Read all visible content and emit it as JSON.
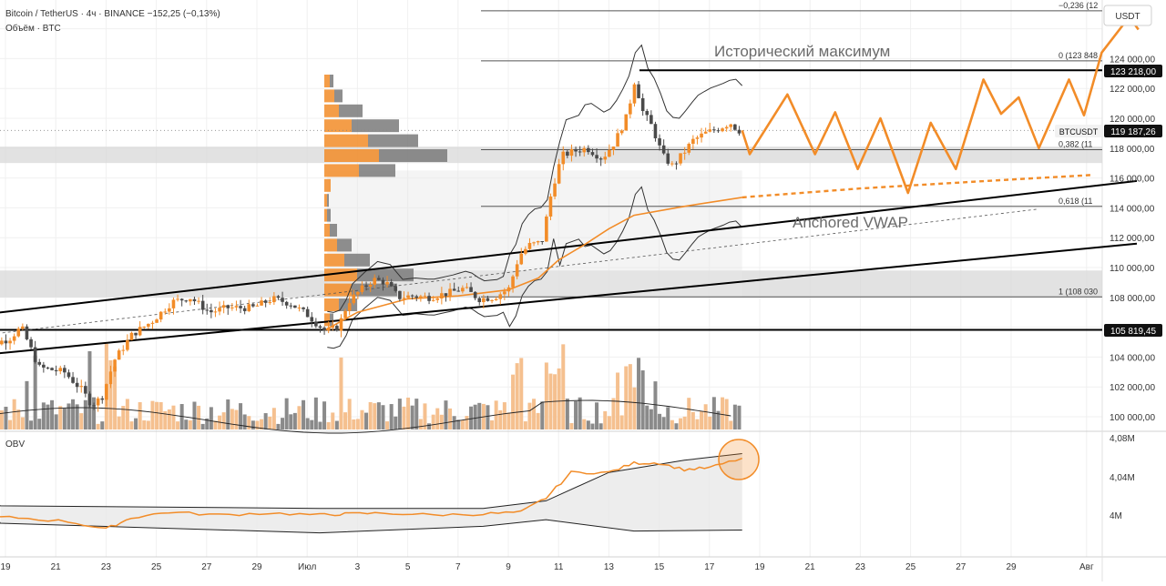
{
  "header": {
    "symbol_line": "Bitcoin / TetherUS · 4ч · BINANCE  −152,25 (−0,13%)",
    "volume_line": "Объём · BTC",
    "currency_button": "USDT"
  },
  "colors": {
    "accent": "#f28c28",
    "up_candle": "#f28c28",
    "down_candle": "#4a4a4a",
    "volume_up": "#f5c08f",
    "volume_down": "#8a8a8a",
    "zone": "#d8d8d8",
    "line": "#000000"
  },
  "annotations": {
    "ath_label": "Исторический максимум",
    "vwap_label": "Anchored VWAP",
    "symbol_tag": "BTCUSDT"
  },
  "panes": {
    "obv_label": "OBV",
    "obv_ticks": [
      "4,08M",
      "4,04M",
      "4M"
    ]
  },
  "chart_data": {
    "type": "candlestick",
    "symbol": "BTCUSDT",
    "timeframe": "4h",
    "exchange": "BINANCE",
    "change": "−152,25 (−0,13%)",
    "last_price": "119 187,26",
    "y_axis": {
      "unit": "USDT",
      "range": [
        98800,
        127500
      ],
      "ticks": [
        "100 000,00",
        "102 000,00",
        "104 000,00",
        "108 000,00",
        "110 000,00",
        "112 000,00",
        "114 000,00",
        "116 000,00",
        "118 000,00",
        "120 000,00",
        "122 000,00",
        "124 000,00"
      ]
    },
    "x_axis": {
      "ticks": [
        {
          "day": 19,
          "label": "19"
        },
        {
          "day": 21,
          "label": "21"
        },
        {
          "day": 23,
          "label": "23"
        },
        {
          "day": 25,
          "label": "25"
        },
        {
          "day": 27,
          "label": "27"
        },
        {
          "day": 29,
          "label": "29"
        },
        {
          "day": 31,
          "label": "Июл"
        },
        {
          "day": 33,
          "label": "3"
        },
        {
          "day": 35,
          "label": "5"
        },
        {
          "day": 37,
          "label": "7"
        },
        {
          "day": 39,
          "label": "9"
        },
        {
          "day": 41,
          "label": "11"
        },
        {
          "day": 43,
          "label": "13"
        },
        {
          "day": 45,
          "label": "15"
        },
        {
          "day": 47,
          "label": "17"
        },
        {
          "day": 49,
          "label": "19"
        },
        {
          "day": 51,
          "label": "21"
        },
        {
          "day": 53,
          "label": "23"
        },
        {
          "day": 55,
          "label": "25"
        },
        {
          "day": 57,
          "label": "27"
        },
        {
          "day": 59,
          "label": "29"
        },
        {
          "day": 62,
          "label": "Авг"
        }
      ]
    },
    "price_anchors": [
      {
        "day": 17.8,
        "price": 104500
      },
      {
        "day": 19.3,
        "price": 105200
      },
      {
        "day": 19.8,
        "price": 106000
      },
      {
        "day": 20.5,
        "price": 103300
      },
      {
        "day": 21.5,
        "price": 103000
      },
      {
        "day": 22.2,
        "price": 101800
      },
      {
        "day": 22.6,
        "price": 100800
      },
      {
        "day": 23.0,
        "price": 101300
      },
      {
        "day": 23.5,
        "price": 103800
      },
      {
        "day": 24.2,
        "price": 105500
      },
      {
        "day": 25.0,
        "price": 106400
      },
      {
        "day": 25.8,
        "price": 107700
      },
      {
        "day": 26.5,
        "price": 108000
      },
      {
        "day": 27.3,
        "price": 107000
      },
      {
        "day": 28.0,
        "price": 107300
      },
      {
        "day": 29.0,
        "price": 107300
      },
      {
        "day": 29.8,
        "price": 107900
      },
      {
        "day": 30.5,
        "price": 107600
      },
      {
        "day": 31.2,
        "price": 106800
      },
      {
        "day": 31.9,
        "price": 105700
      },
      {
        "day": 32.4,
        "price": 106000
      },
      {
        "day": 32.8,
        "price": 107700
      },
      {
        "day": 33.3,
        "price": 108500
      },
      {
        "day": 33.8,
        "price": 109200
      },
      {
        "day": 34.3,
        "price": 109000
      },
      {
        "day": 34.8,
        "price": 108000
      },
      {
        "day": 35.3,
        "price": 108100
      },
      {
        "day": 36.0,
        "price": 108000
      },
      {
        "day": 36.8,
        "price": 108300
      },
      {
        "day": 37.4,
        "price": 108600
      },
      {
        "day": 38.0,
        "price": 107900
      },
      {
        "day": 38.6,
        "price": 108000
      },
      {
        "day": 39.2,
        "price": 108600
      },
      {
        "day": 39.6,
        "price": 110800
      },
      {
        "day": 40.0,
        "price": 111500
      },
      {
        "day": 40.5,
        "price": 111700
      },
      {
        "day": 40.9,
        "price": 115200
      },
      {
        "day": 41.3,
        "price": 117500
      },
      {
        "day": 41.8,
        "price": 117800
      },
      {
        "day": 42.3,
        "price": 118000
      },
      {
        "day": 42.9,
        "price": 117300
      },
      {
        "day": 43.4,
        "price": 118400
      },
      {
        "day": 43.9,
        "price": 120200
      },
      {
        "day": 44.2,
        "price": 122600
      },
      {
        "day": 44.5,
        "price": 120500
      },
      {
        "day": 44.9,
        "price": 119400
      },
      {
        "day": 45.3,
        "price": 117500
      },
      {
        "day": 45.7,
        "price": 116800
      },
      {
        "day": 46.1,
        "price": 117600
      },
      {
        "day": 46.5,
        "price": 118500
      },
      {
        "day": 47.0,
        "price": 119000
      },
      {
        "day": 47.5,
        "price": 119300
      },
      {
        "day": 48.0,
        "price": 119700
      },
      {
        "day": 48.3,
        "price": 119187
      }
    ],
    "horizontal_levels": [
      {
        "name": "all-time-high",
        "price": 123218,
        "label": "123 218,00"
      },
      {
        "name": "support",
        "price": 105819.45,
        "label": "105 819,45"
      }
    ],
    "fibonacci": [
      {
        "level": "-0,236",
        "price": 127200,
        "label": "−0,236 (12"
      },
      {
        "level": "0",
        "price": 123848,
        "label": "0 (123 848"
      },
      {
        "level": "0,382",
        "price": 117900,
        "label": "0,382 (11"
      },
      {
        "level": "0,618",
        "price": 114100,
        "label": "0,618 (11"
      },
      {
        "level": "1",
        "price": 108030,
        "label": "1 (108 030"
      }
    ],
    "zones": [
      {
        "from": 117000,
        "to": 118100
      },
      {
        "from": 108000,
        "to": 109800
      }
    ],
    "channel": {
      "upper": [
        {
          "day": 17.8,
          "price": 106800
        },
        {
          "day": 64,
          "price": 115800
        }
      ],
      "lower": [
        {
          "day": 17.8,
          "price": 104100
        },
        {
          "day": 64,
          "price": 111600
        }
      ],
      "mid_dashed": [
        {
          "day": 17.8,
          "price": 105400
        },
        {
          "day": 60,
          "price": 113900
        }
      ]
    },
    "anchored_vwap": [
      {
        "day": 31.7,
        "price": 105800
      },
      {
        "day": 33.0,
        "price": 107000
      },
      {
        "day": 35.0,
        "price": 107900
      },
      {
        "day": 37.0,
        "price": 108100
      },
      {
        "day": 39.0,
        "price": 108500
      },
      {
        "day": 40.2,
        "price": 109300
      },
      {
        "day": 41.0,
        "price": 110500
      },
      {
        "day": 42.0,
        "price": 111500
      },
      {
        "day": 43.0,
        "price": 112600
      },
      {
        "day": 44.0,
        "price": 113500
      },
      {
        "day": 46.0,
        "price": 114100
      },
      {
        "day": 48.3,
        "price": 114700
      }
    ],
    "vwap_projection": [
      {
        "day": 48.3,
        "price": 114700
      },
      {
        "day": 53,
        "price": 115300
      },
      {
        "day": 58,
        "price": 115800
      },
      {
        "day": 62.2,
        "price": 116200
      }
    ],
    "forecast_path": [
      {
        "day": 48.3,
        "price": 119187
      },
      {
        "day": 48.6,
        "price": 117600
      },
      {
        "day": 50.1,
        "price": 121600
      },
      {
        "day": 51.2,
        "price": 117600
      },
      {
        "day": 52.0,
        "price": 120400
      },
      {
        "day": 52.9,
        "price": 116600
      },
      {
        "day": 53.8,
        "price": 120000
      },
      {
        "day": 54.9,
        "price": 115000
      },
      {
        "day": 55.8,
        "price": 119700
      },
      {
        "day": 56.8,
        "price": 116600
      },
      {
        "day": 57.9,
        "price": 122600
      },
      {
        "day": 58.6,
        "price": 120300
      },
      {
        "day": 59.3,
        "price": 121400
      },
      {
        "day": 60.1,
        "price": 118000
      },
      {
        "day": 61.3,
        "price": 122600
      },
      {
        "day": 61.9,
        "price": 120200
      },
      {
        "day": 62.6,
        "price": 124400
      },
      {
        "day": 63.7,
        "price": 126800
      }
    ],
    "obv": {
      "range": [
        3.98,
        4.085
      ],
      "series": [
        {
          "day": 17.8,
          "value": 4.0
        },
        {
          "day": 19.5,
          "value": 3.999
        },
        {
          "day": 21.5,
          "value": 3.995
        },
        {
          "day": 23.0,
          "value": 3.987
        },
        {
          "day": 24.0,
          "value": 3.999
        },
        {
          "day": 25.5,
          "value": 4.005
        },
        {
          "day": 27.5,
          "value": 4.002
        },
        {
          "day": 29.5,
          "value": 4.004
        },
        {
          "day": 31.5,
          "value": 4.002
        },
        {
          "day": 32.5,
          "value": 4.003
        },
        {
          "day": 34.0,
          "value": 4.004
        },
        {
          "day": 36.0,
          "value": 4.002
        },
        {
          "day": 38.0,
          "value": 4.003
        },
        {
          "day": 39.5,
          "value": 4.005
        },
        {
          "day": 40.5,
          "value": 4.02
        },
        {
          "day": 41.5,
          "value": 4.047
        },
        {
          "day": 43.0,
          "value": 4.047
        },
        {
          "day": 44.0,
          "value": 4.057
        },
        {
          "day": 45.0,
          "value": 4.057
        },
        {
          "day": 46.0,
          "value": 4.05
        },
        {
          "day": 47.0,
          "value": 4.052
        },
        {
          "day": 48.3,
          "value": 4.062
        }
      ],
      "band_upper": [
        {
          "day": 17.8,
          "value": 4.012
        },
        {
          "day": 31.5,
          "value": 4.009
        },
        {
          "day": 38.0,
          "value": 4.009
        },
        {
          "day": 40.5,
          "value": 4.017
        },
        {
          "day": 43.0,
          "value": 4.047
        },
        {
          "day": 46.0,
          "value": 4.06
        },
        {
          "day": 48.3,
          "value": 4.067
        }
      ],
      "band_lower": [
        {
          "day": 17.8,
          "value": 3.994
        },
        {
          "day": 31.5,
          "value": 3.983
        },
        {
          "day": 38.0,
          "value": 3.99
        },
        {
          "day": 40.5,
          "value": 3.997
        },
        {
          "day": 44.0,
          "value": 3.985
        },
        {
          "day": 48.3,
          "value": 3.986
        }
      ]
    },
    "volume_profile": [
      {
        "price": 122500,
        "up": 6,
        "down": 4
      },
      {
        "price": 121500,
        "up": 11,
        "down": 9
      },
      {
        "price": 120500,
        "up": 16,
        "down": 26
      },
      {
        "price": 119500,
        "up": 30,
        "down": 52
      },
      {
        "price": 118500,
        "up": 48,
        "down": 55
      },
      {
        "price": 117500,
        "up": 60,
        "down": 75
      },
      {
        "price": 116500,
        "up": 38,
        "down": 40
      },
      {
        "price": 115500,
        "up": 7,
        "down": 0
      },
      {
        "price": 114500,
        "up": 3,
        "down": 2
      },
      {
        "price": 113500,
        "up": 3,
        "down": 4
      },
      {
        "price": 112500,
        "up": 6,
        "down": 8
      },
      {
        "price": 111500,
        "up": 14,
        "down": 16
      },
      {
        "price": 110500,
        "up": 22,
        "down": 28
      },
      {
        "price": 109500,
        "up": 36,
        "down": 62
      },
      {
        "price": 108500,
        "up": 30,
        "down": 50
      },
      {
        "price": 107500,
        "up": 16,
        "down": 20
      },
      {
        "price": 106500,
        "up": 6,
        "down": 4
      }
    ]
  }
}
